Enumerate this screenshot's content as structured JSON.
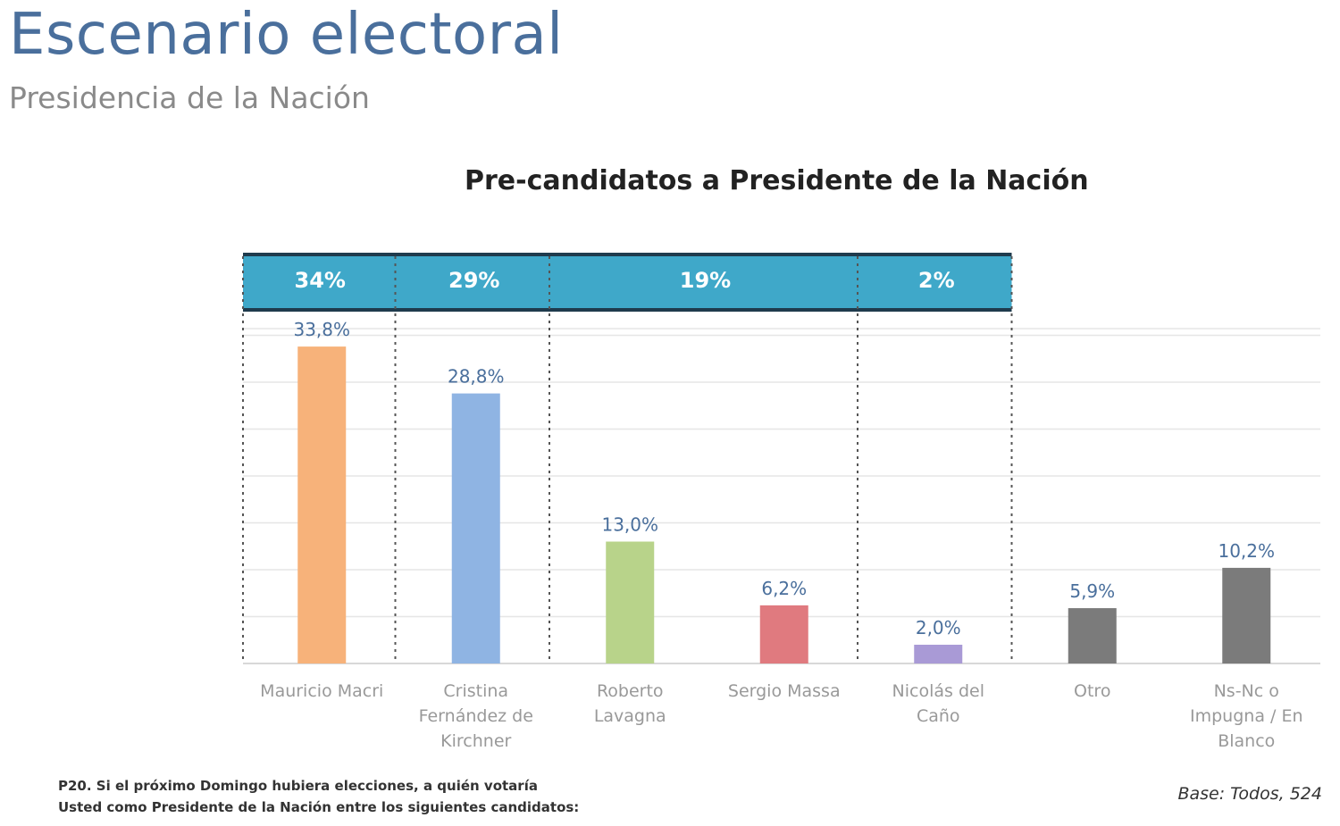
{
  "header": {
    "title": "Escenario electoral",
    "subtitle": "Presidencia de la Nación"
  },
  "footer": {
    "question_line1": "P20. Si el próximo Domingo hubiera elecciones, a quién votaría",
    "question_line2": "Usted como Presidente de la Nación entre los siguientes candidatos:",
    "base": "Base: Todos, 524"
  },
  "colors": {
    "band": "#3fa8c9",
    "band_text": "#ffffff",
    "value_label": "#4a6f9c",
    "category_label": "#999999",
    "grid": "#e6e6e6",
    "divider": "#555555"
  },
  "chart_data": {
    "type": "bar",
    "title": "Pre-candidatos a Presidente de la Nación",
    "categories": [
      "Mauricio Macri",
      "Cristina Fernández de Kirchner",
      "Roberto Lavagna",
      "Sergio Massa",
      "Nicolás del Caño",
      "Otro",
      "Ns-Nc o Impugna / En Blanco"
    ],
    "values": [
      33.8,
      28.8,
      13.0,
      6.2,
      2.0,
      5.9,
      10.2
    ],
    "value_labels": [
      "33,8%",
      "28,8%",
      "13,0%",
      "6,2%",
      "2,0%",
      "5,9%",
      "10,2%"
    ],
    "colors": [
      "#f7b27a",
      "#8fb4e3",
      "#b8d38a",
      "#e07a7f",
      "#a99ad6",
      "#7b7b7b",
      "#7b7b7b"
    ],
    "groups": [
      {
        "label": "34%",
        "first": 0,
        "last": 0
      },
      {
        "label": "29%",
        "first": 1,
        "last": 1
      },
      {
        "label": "19%",
        "first": 2,
        "last": 3
      },
      {
        "label": "2%",
        "first": 4,
        "last": 4
      }
    ],
    "ylim": [
      0,
      40
    ],
    "grid": true,
    "xlabel": "",
    "ylabel": ""
  }
}
